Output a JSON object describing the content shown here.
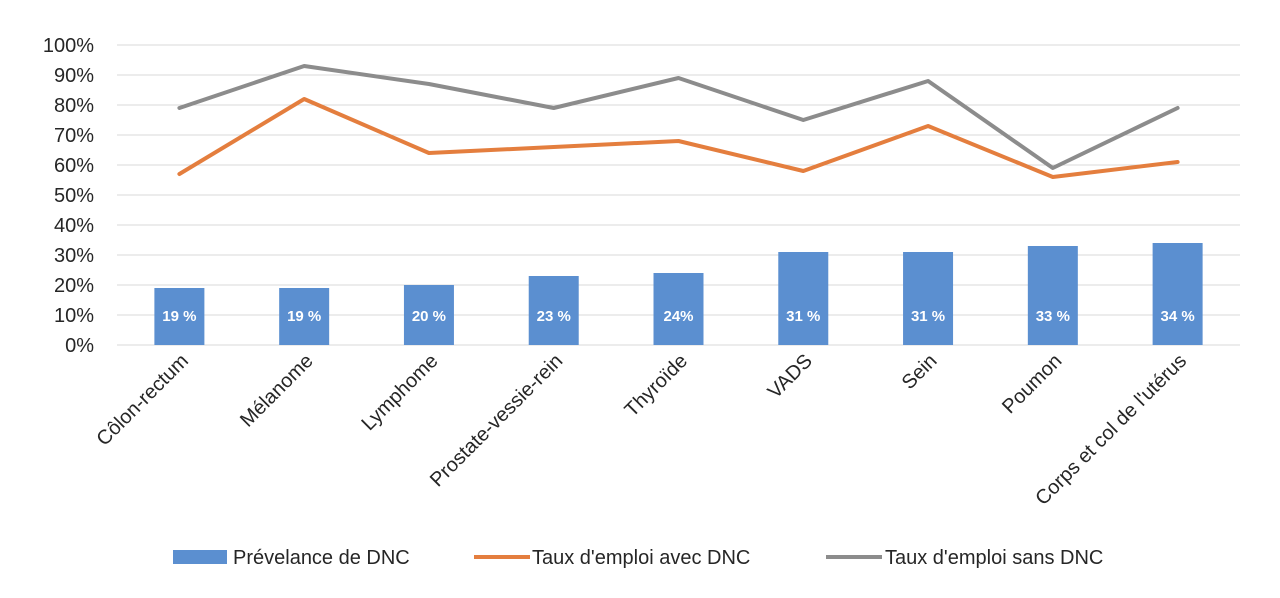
{
  "chart_data": {
    "type": "bar",
    "categories": [
      "Côlon-rectum",
      "Mélanome",
      "Lymphome",
      "Prostate-vessie-rein",
      "Thyroïde",
      "VADS",
      "Sein",
      "Poumon",
      "Corps et col de l'utérus"
    ],
    "ylim": [
      0,
      100
    ],
    "yticks": [
      "0%",
      "10%",
      "20%",
      "30%",
      "40%",
      "50%",
      "60%",
      "70%",
      "80%",
      "90%",
      "100%"
    ],
    "grid": true,
    "legend_position": "bottom",
    "series": [
      {
        "name": "Prévelance de DNC",
        "type": "bar",
        "color": "#5b8fd0",
        "values": [
          19,
          19,
          20,
          23,
          24,
          31,
          31,
          33,
          34
        ],
        "data_labels": [
          "19 %",
          "19 %",
          "20 %",
          "23 %",
          "24%",
          "31 %",
          "31 %",
          "33 %",
          "34 %"
        ]
      },
      {
        "name": "Taux d'emploi avec DNC",
        "type": "line",
        "color": "#e47e3e",
        "values": [
          57,
          82,
          64,
          66,
          68,
          58,
          73,
          56,
          61
        ]
      },
      {
        "name": "Taux d'emploi sans DNC",
        "type": "line",
        "color": "#8c8c8c",
        "values": [
          79,
          93,
          87,
          79,
          89,
          75,
          88,
          59,
          79
        ]
      }
    ]
  }
}
